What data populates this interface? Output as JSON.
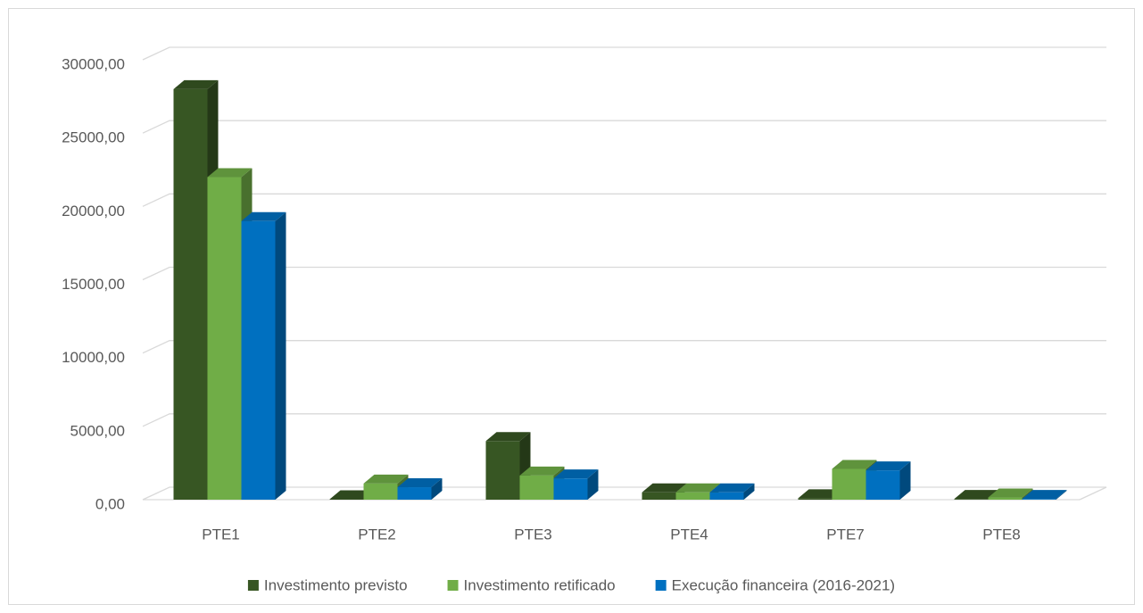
{
  "chart_data": {
    "type": "bar3d",
    "categories": [
      "PTE1",
      "PTE2",
      "PTE3",
      "PTE4",
      "PTE7",
      "PTE8"
    ],
    "series": [
      {
        "name": "Investimento previsto",
        "color": "#375623",
        "values": [
          28000,
          30,
          4000,
          500,
          100,
          50
        ]
      },
      {
        "name": "Investimento retificado",
        "color": "#70ad47",
        "values": [
          22000,
          1100,
          1650,
          500,
          2100,
          150
        ]
      },
      {
        "name": "Execução financeira (2016-2021)",
        "color": "#0070c0",
        "values": [
          19000,
          850,
          1450,
          500,
          2000,
          50
        ]
      }
    ],
    "ylim": [
      0,
      30000
    ],
    "yticks": [
      {
        "value": 0,
        "label": "0,00"
      },
      {
        "value": 5000,
        "label": "5000,00"
      },
      {
        "value": 10000,
        "label": "10000,00"
      },
      {
        "value": 15000,
        "label": "15000,00"
      },
      {
        "value": 20000,
        "label": "20000,00"
      },
      {
        "value": 25000,
        "label": "25000,00"
      },
      {
        "value": 30000,
        "label": "30000,00"
      }
    ],
    "grid": true,
    "legend": "bottom"
  }
}
